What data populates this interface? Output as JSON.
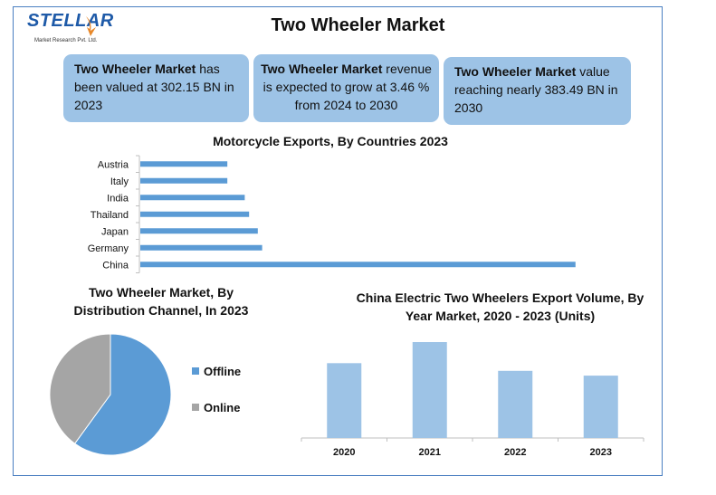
{
  "logo": {
    "brand": "STELLAR",
    "tagline": "Market Research Pvt. Ltd."
  },
  "title": "Two Wheeler Market",
  "info_boxes": [
    {
      "bold": "Two Wheeler Market",
      "text": " has been valued at 302.15 BN in 2023"
    },
    {
      "bold": "Two Wheeler Market",
      "text": " revenue is expected to grow at 3.46 % from 2024 to 2030"
    },
    {
      "bold": "Two Wheeler Market",
      "text": " value reaching nearly 383.49 BN in 2030"
    }
  ],
  "colors": {
    "bar": "#5b9bd5",
    "bar_light": "#9dc3e6",
    "pie_offline": "#5b9bd5",
    "pie_online": "#a5a5a5",
    "frame": "#4a7fc1"
  },
  "chart_data": [
    {
      "type": "bar",
      "orientation": "horizontal",
      "title": "Motorcycle Exports, By Countries 2023",
      "categories": [
        "Austria",
        "Italy",
        "India",
        "Thailand",
        "Japan",
        "Germany",
        "China"
      ],
      "values": [
        2.0,
        2.0,
        2.4,
        2.5,
        2.7,
        2.8,
        10.0
      ],
      "xlim": [
        0,
        10.4
      ],
      "grid": false,
      "legend": "none"
    },
    {
      "type": "pie",
      "title": "Two Wheeler Market, By Distribution Channel, In 2023",
      "labels": [
        "Offline",
        "Online"
      ],
      "values": [
        60,
        40
      ],
      "legend": "right"
    },
    {
      "type": "bar",
      "title": "China Electric Two Wheelers Export Volume, By Year Market, 2020 - 2023 (Units)",
      "categories": [
        "2020",
        "2021",
        "2022",
        "2023"
      ],
      "values": [
        78,
        100,
        70,
        65
      ],
      "ylim": [
        0,
        100
      ],
      "grid": false,
      "legend": "none"
    }
  ]
}
